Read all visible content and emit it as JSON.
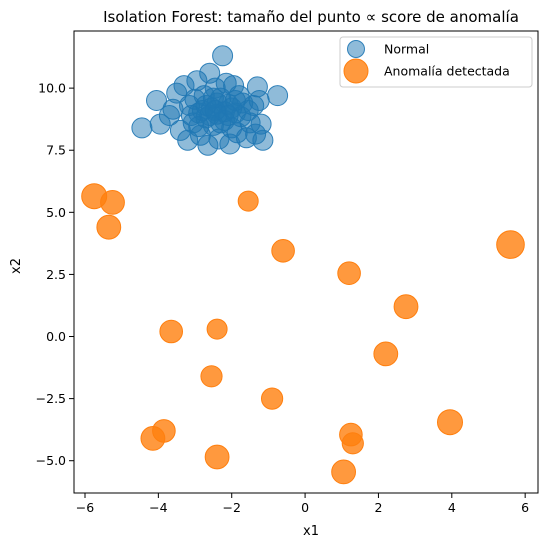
{
  "chart_data": {
    "type": "scatter",
    "title": "Isolation Forest: tamaño del punto ∝ score de anomalía",
    "xlabel": "x1",
    "ylabel": "x2",
    "xlim": [
      -6.3,
      6.35
    ],
    "ylim": [
      -6.3,
      12.3
    ],
    "xticks": [
      -6,
      -4,
      -2,
      0,
      2,
      4,
      6
    ],
    "xtick_labels": [
      "−6",
      "−4",
      "−2",
      "0",
      "2",
      "4",
      "6"
    ],
    "yticks": [
      -5.0,
      -2.5,
      0.0,
      2.5,
      5.0,
      7.5,
      10.0
    ],
    "ytick_labels": [
      "−5.0",
      "−2.5",
      "0.0",
      "2.5",
      "5.0",
      "7.5",
      "10.0"
    ],
    "grid": false,
    "legend_position": "top-right",
    "series": [
      {
        "name": "Normal",
        "color": "#1f77b4",
        "alpha": 0.5,
        "points": [
          [
            -4.45,
            8.4
          ],
          [
            -4.05,
            9.5
          ],
          [
            -3.95,
            8.55
          ],
          [
            -3.7,
            8.9
          ],
          [
            -3.6,
            9.15
          ],
          [
            -3.5,
            9.8
          ],
          [
            -3.4,
            8.3
          ],
          [
            -3.3,
            10.1
          ],
          [
            -3.2,
            7.9
          ],
          [
            -3.15,
            9.3
          ],
          [
            -3.05,
            8.6
          ],
          [
            -2.95,
            10.3
          ],
          [
            -2.9,
            9.0
          ],
          [
            -2.85,
            8.1
          ],
          [
            -2.75,
            9.7
          ],
          [
            -2.7,
            8.8
          ],
          [
            -2.65,
            7.7
          ],
          [
            -2.6,
            10.6
          ],
          [
            -2.55,
            9.2
          ],
          [
            -2.5,
            8.5
          ],
          [
            -2.45,
            10.0
          ],
          [
            -2.4,
            8.95
          ],
          [
            -2.35,
            7.95
          ],
          [
            -2.3,
            9.6
          ],
          [
            -2.25,
            11.3
          ],
          [
            -2.2,
            8.7
          ],
          [
            -2.15,
            10.2
          ],
          [
            -2.1,
            9.35
          ],
          [
            -2.05,
            7.75
          ],
          [
            -2.0,
            8.4
          ],
          [
            -1.95,
            10.1
          ],
          [
            -1.9,
            9.0
          ],
          [
            -1.85,
            8.2
          ],
          [
            -1.8,
            9.7
          ],
          [
            -1.75,
            8.85
          ],
          [
            -1.7,
            9.4
          ],
          [
            -1.6,
            8.0
          ],
          [
            -1.55,
            9.1
          ],
          [
            -1.5,
            8.6
          ],
          [
            -1.4,
            9.3
          ],
          [
            -1.35,
            8.15
          ],
          [
            -1.3,
            10.05
          ],
          [
            -1.25,
            9.5
          ],
          [
            -1.2,
            8.55
          ],
          [
            -1.15,
            7.9
          ],
          [
            -0.75,
            9.7
          ],
          [
            -3.0,
            9.55
          ],
          [
            -2.8,
            9.1
          ],
          [
            -2.6,
            8.9
          ],
          [
            -2.4,
            9.4
          ],
          [
            -2.2,
            9.05
          ],
          [
            -2.0,
            9.2
          ],
          [
            -3.1,
            8.9
          ],
          [
            -2.9,
            8.45
          ],
          [
            -2.7,
            9.3
          ],
          [
            -2.5,
            9.6
          ],
          [
            -2.3,
            8.6
          ],
          [
            -2.1,
            8.9
          ],
          [
            -1.9,
            9.5
          ],
          [
            -2.45,
            9.1
          ]
        ]
      },
      {
        "name": "Anomalía detectada",
        "color": "#ff7f0e",
        "alpha": 0.8,
        "points": [
          [
            -5.75,
            5.65
          ],
          [
            -5.25,
            5.4
          ],
          [
            -5.35,
            4.4
          ],
          [
            -1.55,
            5.45
          ],
          [
            -0.6,
            3.45
          ],
          [
            5.6,
            3.7
          ],
          [
            1.2,
            2.55
          ],
          [
            2.75,
            1.2
          ],
          [
            -3.65,
            0.2
          ],
          [
            -2.4,
            0.3
          ],
          [
            2.2,
            -0.7
          ],
          [
            -2.55,
            -1.6
          ],
          [
            -0.9,
            -2.5
          ],
          [
            -3.85,
            -3.8
          ],
          [
            -4.15,
            -4.1
          ],
          [
            1.25,
            -3.95
          ],
          [
            1.3,
            -4.3
          ],
          [
            3.95,
            -3.45
          ],
          [
            -2.4,
            -4.85
          ],
          [
            1.05,
            -5.45
          ]
        ],
        "sizes": [
          1.0,
          0.95,
          0.95,
          0.8,
          0.9,
          1.1,
          0.9,
          0.95,
          0.9,
          0.8,
          0.95,
          0.85,
          0.85,
          0.9,
          0.95,
          0.9,
          0.85,
          1.0,
          0.95,
          0.95
        ]
      }
    ]
  }
}
